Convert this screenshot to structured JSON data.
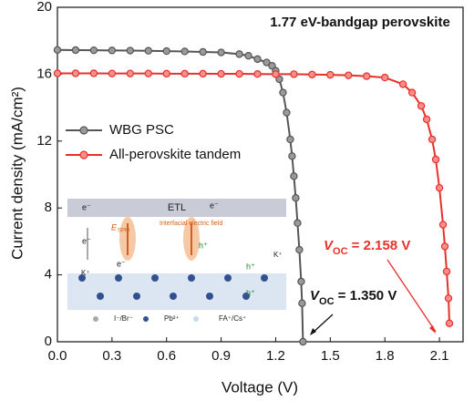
{
  "chart_data": {
    "type": "line",
    "title": "1.77 eV-bandgap perovskite",
    "x_label": "Voltage (V)",
    "y_label": "Current density (mA/cm²)",
    "xlim": [
      0,
      2.23
    ],
    "ylim": [
      0,
      20
    ],
    "xticks": [
      {
        "value": 0,
        "label": "0.0"
      },
      0.3,
      0.6,
      0.9,
      1.2,
      1.5,
      1.8,
      2.1
    ],
    "yticks": [
      0,
      4,
      8,
      12,
      16,
      20
    ],
    "legend": "upper left",
    "series": [
      {
        "name": "WBG PSC",
        "color": "#555555",
        "x": [
          0,
          0.1,
          0.2,
          0.3,
          0.4,
          0.5,
          0.6,
          0.7,
          0.8,
          0.9,
          1.0,
          1.05,
          1.1,
          1.15,
          1.18,
          1.2,
          1.22,
          1.24,
          1.26,
          1.28,
          1.29,
          1.3,
          1.31,
          1.32,
          1.33,
          1.34,
          1.345,
          1.35
        ],
        "values": [
          17.45,
          17.44,
          17.43,
          17.42,
          17.41,
          17.4,
          17.38,
          17.36,
          17.33,
          17.3,
          17.2,
          17.1,
          16.9,
          16.7,
          16.5,
          16.2,
          15.7,
          14.9,
          13.7,
          12.1,
          11.1,
          9.9,
          8.6,
          7.1,
          5.5,
          3.6,
          2.3,
          0
        ]
      },
      {
        "name": "All-perovskite tandem",
        "color": "#e8302a",
        "x": [
          0,
          0.1,
          0.2,
          0.3,
          0.4,
          0.5,
          0.6,
          0.7,
          0.8,
          0.9,
          1.0,
          1.1,
          1.2,
          1.3,
          1.4,
          1.5,
          1.6,
          1.7,
          1.8,
          1.9,
          1.95,
          2.0,
          2.03,
          2.06,
          2.08,
          2.1,
          2.12,
          2.13,
          2.14,
          2.15,
          2.155
        ],
        "values": [
          16.05,
          16.05,
          16.05,
          16.04,
          16.04,
          16.04,
          16.03,
          16.03,
          16.03,
          16.02,
          16.02,
          16.01,
          16.0,
          16.0,
          15.98,
          15.96,
          15.93,
          15.88,
          15.8,
          15.4,
          14.9,
          14.1,
          13.3,
          12.1,
          10.9,
          9.2,
          7.0,
          5.7,
          4.2,
          2.6,
          1.1
        ]
      }
    ],
    "annotations": [
      {
        "symbol": "V",
        "subscript": "OC",
        "text": " = 2.158 V",
        "color": "#e8302a"
      },
      {
        "symbol": "V",
        "subscript": "OC",
        "text": " = 1.350 V",
        "color": "#111111"
      }
    ]
  },
  "inset": {
    "labels": [
      "ETL",
      "Interfacial electric field",
      "E",
      "SPM",
      "e⁻",
      "e⁻",
      "e⁻",
      "e⁻",
      "h⁺",
      "h⁺",
      "h⁺",
      "K⁺",
      "K⁺",
      "I⁻/Br⁻",
      "Pb²⁺",
      "FA⁺/Cs⁺"
    ]
  }
}
